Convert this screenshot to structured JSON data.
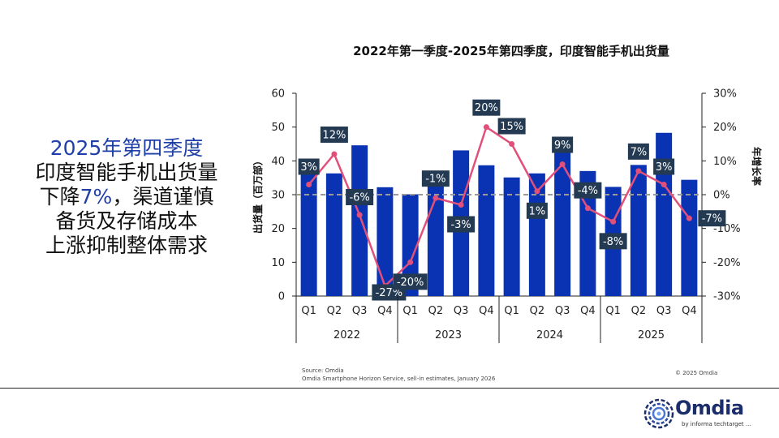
{
  "headline": {
    "line1": "2025年第四季度",
    "line2": "印度智能手机出货量",
    "line3_pre": "下降",
    "line3_pct": "7%",
    "line3_post": "，渠道谨慎",
    "line4": "备货及存储成本",
    "line5": "上涨抑制整体需求"
  },
  "colors": {
    "bar": "#0a33b3",
    "line": "#e0507a",
    "label_bg": "#233a52",
    "headline_accent": "#1f3fa8"
  },
  "chart_data": {
    "type": "bar",
    "title": "2022年第一季度-2025年第四季度，印度智能手机出货量",
    "ylabel_left": "出货量（百万部）",
    "ylabel_right": "年增长率",
    "ylim": [
      0,
      60
    ],
    "yticks": [
      0,
      10,
      20,
      30,
      40,
      50,
      60
    ],
    "y2lim": [
      -30,
      30
    ],
    "y2ticks": [
      -30,
      -20,
      -10,
      0,
      10,
      20,
      30
    ],
    "y2ticklabels": [
      "-30%",
      "-20%",
      "-10%",
      "0%",
      "10%",
      "20%",
      "30%"
    ],
    "categories": [
      "Q1",
      "Q2",
      "Q3",
      "Q4",
      "Q1",
      "Q2",
      "Q3",
      "Q4",
      "Q1",
      "Q2",
      "Q3",
      "Q4",
      "Q1",
      "Q2",
      "Q3",
      "Q4"
    ],
    "years": [
      "2022",
      "2023",
      "2024",
      "2025"
    ],
    "series": [
      {
        "name": "出货量",
        "kind": "bar",
        "values": [
          38.0,
          36.3,
          44.6,
          32.2,
          30.1,
          35.7,
          43.1,
          38.7,
          35.1,
          36.3,
          46.8,
          37.0,
          32.3,
          38.8,
          48.3,
          34.4
        ]
      },
      {
        "name": "年增长率",
        "kind": "line",
        "values": [
          3,
          12,
          -6,
          -27,
          -20,
          -1,
          -3,
          20,
          15,
          1,
          9,
          -4,
          -8,
          7,
          3,
          -7
        ],
        "labels": [
          "3%",
          "12%",
          "-6%",
          "-27%",
          "-20%",
          "-1%",
          "-3%",
          "20%",
          "15%",
          "1%",
          "9%",
          "-4%",
          "-8%",
          "7%",
          "3%",
          "-7%"
        ]
      }
    ]
  },
  "source": {
    "line1": "Source: Omdia",
    "line2": "Omdia Smartphone Horizon Service, sell-in estimates, January 2026"
  },
  "copyright": "© 2025 Omdia",
  "logo": {
    "name": "Omdia",
    "tagline": "by informa techtarget ..."
  }
}
